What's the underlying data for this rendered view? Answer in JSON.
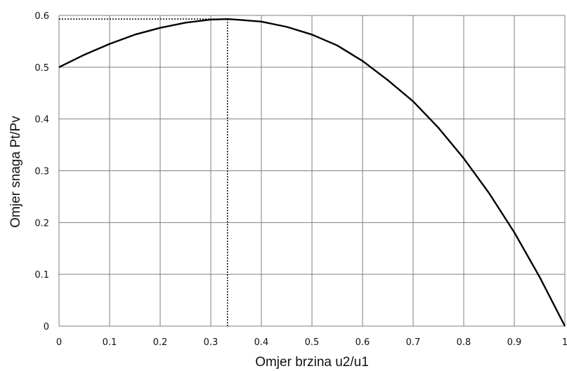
{
  "chart_data": {
    "type": "line",
    "title": "",
    "xlabel": "Omjer brzina u2/u1",
    "ylabel": "Omjer snaga Pt/Pv",
    "xlim": [
      0,
      1
    ],
    "ylim": [
      0,
      0.6
    ],
    "x_ticks": [
      0,
      0.1,
      0.2,
      0.3,
      0.4,
      0.5,
      0.6,
      0.7,
      0.8,
      0.9,
      1
    ],
    "y_ticks": [
      0,
      0.1,
      0.2,
      0.3,
      0.4,
      0.5,
      0.6
    ],
    "x_tick_labels": [
      "0",
      "0.1",
      "0.2",
      "0.3",
      "0.4",
      "0.5",
      "0.6",
      "0.7",
      "0.8",
      "0.9",
      "1"
    ],
    "y_tick_labels": [
      "0",
      "0.1",
      "0.2",
      "0.3",
      "0.4",
      "0.5",
      "0.6"
    ],
    "grid": true,
    "legend": "none",
    "series": [
      {
        "x": [
          0,
          0.05,
          0.1,
          0.15,
          0.2,
          0.25,
          0.3,
          0.333,
          0.35,
          0.4,
          0.45,
          0.5,
          0.55,
          0.6,
          0.65,
          0.7,
          0.75,
          0.8,
          0.85,
          0.9,
          0.95,
          1
        ],
        "values": [
          0.5,
          0.524,
          0.545,
          0.563,
          0.576,
          0.586,
          0.592,
          0.593,
          0.592,
          0.588,
          0.578,
          0.563,
          0.542,
          0.512,
          0.475,
          0.434,
          0.383,
          0.324,
          0.257,
          0.181,
          0.095,
          0
        ],
        "color": "#000000"
      }
    ],
    "reference_lines": {
      "x": 0.333,
      "y": 0.593,
      "style": "dotted"
    }
  }
}
